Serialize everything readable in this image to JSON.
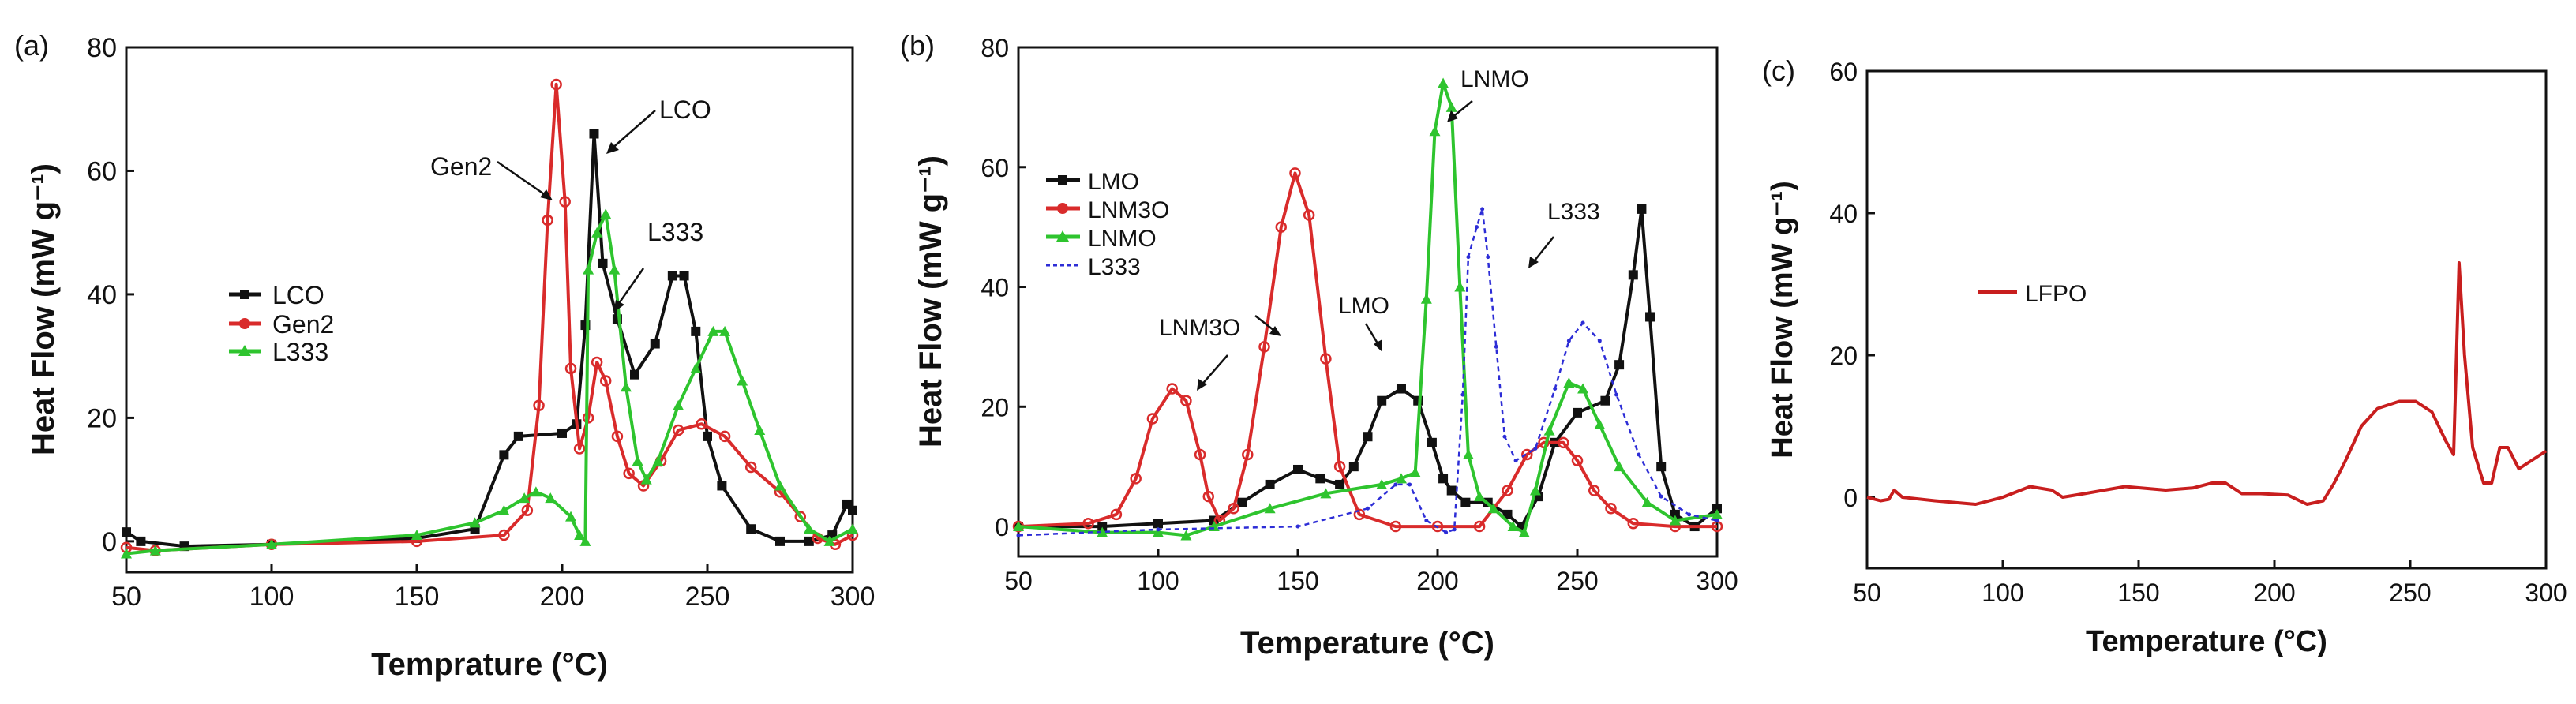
{
  "figure": {
    "panels": [
      "(a)",
      "(b)",
      "(c)"
    ]
  },
  "chart_data": [
    {
      "type": "line",
      "panel_label": "(a)",
      "xlabel": "Temprature",
      "xunit": "(°C)",
      "ylabel": "Heat Flow",
      "yunit": "(mW g⁻¹)",
      "xlim": [
        50,
        300
      ],
      "ylim": [
        -5,
        80
      ],
      "xticks": [
        50,
        100,
        150,
        200,
        250,
        300
      ],
      "yticks": [
        0,
        20,
        40,
        60,
        80
      ],
      "legend": [
        "LCO",
        "Gen2",
        "L333"
      ],
      "annotations": [
        "Gen2",
        "LCO",
        "L333"
      ],
      "series": [
        {
          "name": "LCO",
          "color": "#111111",
          "marker": "square",
          "points": [
            [
              50,
              1.5
            ],
            [
              55,
              0
            ],
            [
              70,
              -0.8
            ],
            [
              100,
              -0.5
            ],
            [
              150,
              0.5
            ],
            [
              170,
              2
            ],
            [
              180,
              14
            ],
            [
              185,
              17
            ],
            [
              200,
              17.5
            ],
            [
              205,
              19
            ],
            [
              208,
              35
            ],
            [
              211,
              66
            ],
            [
              214,
              45
            ],
            [
              219,
              36
            ],
            [
              225,
              27
            ],
            [
              232,
              32
            ],
            [
              238,
              43
            ],
            [
              242,
              43
            ],
            [
              246,
              34
            ],
            [
              250,
              17
            ],
            [
              255,
              9
            ],
            [
              265,
              2
            ],
            [
              275,
              0
            ],
            [
              285,
              0
            ],
            [
              293,
              1
            ],
            [
              298,
              6
            ],
            [
              300,
              5
            ]
          ]
        },
        {
          "name": "Gen2",
          "color": "#d92b2b",
          "marker": "circle",
          "points": [
            [
              50,
              -1
            ],
            [
              60,
              -1.5
            ],
            [
              100,
              -0.5
            ],
            [
              150,
              0
            ],
            [
              180,
              1
            ],
            [
              188,
              5
            ],
            [
              192,
              22
            ],
            [
              195,
              52
            ],
            [
              198,
              74
            ],
            [
              201,
              55
            ],
            [
              203,
              28
            ],
            [
              206,
              15
            ],
            [
              209,
              20
            ],
            [
              212,
              29
            ],
            [
              215,
              26
            ],
            [
              219,
              17
            ],
            [
              223,
              11
            ],
            [
              228,
              9
            ],
            [
              234,
              13
            ],
            [
              240,
              18
            ],
            [
              248,
              19
            ],
            [
              256,
              17
            ],
            [
              265,
              12
            ],
            [
              275,
              8
            ],
            [
              282,
              4
            ],
            [
              288,
              0.5
            ],
            [
              294,
              -0.5
            ],
            [
              300,
              1
            ]
          ]
        },
        {
          "name": "L333",
          "color": "#2ec42e",
          "marker": "triangle",
          "points": [
            [
              50,
              -2
            ],
            [
              60,
              -1.5
            ],
            [
              100,
              -0.5
            ],
            [
              150,
              1
            ],
            [
              170,
              3
            ],
            [
              180,
              5
            ],
            [
              187,
              7
            ],
            [
              191,
              8
            ],
            [
              196,
              7
            ],
            [
              203,
              4
            ],
            [
              206,
              1
            ],
            [
              208,
              0
            ],
            [
              209,
              44
            ],
            [
              212,
              50
            ],
            [
              215,
              53
            ],
            [
              218,
              44
            ],
            [
              222,
              25
            ],
            [
              226,
              13
            ],
            [
              229,
              10
            ],
            [
              233,
              13
            ],
            [
              240,
              22
            ],
            [
              246,
              28
            ],
            [
              252,
              34
            ],
            [
              256,
              34
            ],
            [
              262,
              26
            ],
            [
              268,
              18
            ],
            [
              275,
              9
            ],
            [
              285,
              2
            ],
            [
              292,
              0
            ],
            [
              300,
              2
            ]
          ]
        }
      ]
    },
    {
      "type": "line",
      "panel_label": "(b)",
      "xlabel": "Temperature",
      "xunit": "(°C)",
      "ylabel": "Heat Flow",
      "yunit": "(mW g⁻¹)",
      "xlim": [
        50,
        300
      ],
      "ylim": [
        -5,
        80
      ],
      "xticks": [
        50,
        100,
        150,
        200,
        250,
        300
      ],
      "yticks": [
        0,
        20,
        40,
        60,
        80
      ],
      "legend": [
        "LMO",
        "LNM3O",
        "LNMO",
        "L333"
      ],
      "annotations": [
        "LNMO",
        "L333",
        "LNM3O",
        "LMO"
      ],
      "series": [
        {
          "name": "LMO",
          "color": "#111111",
          "marker": "square",
          "points": [
            [
              50,
              0
            ],
            [
              80,
              0
            ],
            [
              100,
              0.5
            ],
            [
              120,
              1
            ],
            [
              130,
              4
            ],
            [
              140,
              7
            ],
            [
              150,
              9.5
            ],
            [
              158,
              8
            ],
            [
              165,
              7
            ],
            [
              170,
              10
            ],
            [
              175,
              15
            ],
            [
              180,
              21
            ],
            [
              187,
              23
            ],
            [
              193,
              21
            ],
            [
              198,
              14
            ],
            [
              202,
              8
            ],
            [
              205,
              6
            ],
            [
              210,
              4
            ],
            [
              218,
              4
            ],
            [
              225,
              2
            ],
            [
              230,
              0
            ],
            [
              236,
              5
            ],
            [
              242,
              14
            ],
            [
              250,
              19
            ],
            [
              260,
              21
            ],
            [
              265,
              27
            ],
            [
              270,
              42
            ],
            [
              273,
              53
            ],
            [
              276,
              35
            ],
            [
              280,
              10
            ],
            [
              285,
              2
            ],
            [
              292,
              0
            ],
            [
              300,
              3
            ]
          ]
        },
        {
          "name": "LNM3O",
          "color": "#d92b2b",
          "marker": "circle",
          "points": [
            [
              50,
              0
            ],
            [
              75,
              0.5
            ],
            [
              85,
              2
            ],
            [
              92,
              8
            ],
            [
              98,
              18
            ],
            [
              105,
              23
            ],
            [
              110,
              21
            ],
            [
              115,
              12
            ],
            [
              118,
              5
            ],
            [
              122,
              1
            ],
            [
              127,
              3
            ],
            [
              132,
              12
            ],
            [
              138,
              30
            ],
            [
              144,
              50
            ],
            [
              149,
              59
            ],
            [
              154,
              52
            ],
            [
              160,
              28
            ],
            [
              165,
              10
            ],
            [
              172,
              2
            ],
            [
              185,
              0
            ],
            [
              200,
              0
            ],
            [
              215,
              0
            ],
            [
              225,
              6
            ],
            [
              232,
              12
            ],
            [
              238,
              14
            ],
            [
              245,
              14
            ],
            [
              250,
              11
            ],
            [
              256,
              6
            ],
            [
              262,
              3
            ],
            [
              270,
              0.5
            ],
            [
              285,
              0
            ],
            [
              300,
              0
            ]
          ]
        },
        {
          "name": "LNMO",
          "color": "#2ec42e",
          "marker": "triangle",
          "points": [
            [
              50,
              0
            ],
            [
              80,
              -1
            ],
            [
              100,
              -1
            ],
            [
              110,
              -1.5
            ],
            [
              120,
              0
            ],
            [
              140,
              3
            ],
            [
              160,
              5.5
            ],
            [
              180,
              7
            ],
            [
              187,
              8
            ],
            [
              192,
              9
            ],
            [
              196,
              38
            ],
            [
              199,
              66
            ],
            [
              202,
              74
            ],
            [
              205,
              70
            ],
            [
              208,
              40
            ],
            [
              211,
              12
            ],
            [
              215,
              5
            ],
            [
              220,
              3
            ],
            [
              227,
              0
            ],
            [
              231,
              -1
            ],
            [
              235,
              6
            ],
            [
              240,
              16
            ],
            [
              247,
              24
            ],
            [
              252,
              23
            ],
            [
              258,
              17
            ],
            [
              265,
              10
            ],
            [
              275,
              4
            ],
            [
              285,
              1
            ],
            [
              300,
              2
            ]
          ]
        },
        {
          "name": "L333",
          "color": "#2d2dd6",
          "marker": "dot",
          "dash": "6,5",
          "points": [
            [
              50,
              -1.5
            ],
            [
              100,
              -0.5
            ],
            [
              150,
              0
            ],
            [
              175,
              3
            ],
            [
              185,
              7
            ],
            [
              190,
              7
            ],
            [
              196,
              1
            ],
            [
              203,
              -1
            ],
            [
              206,
              -0.5
            ],
            [
              209,
              22
            ],
            [
              211,
              45
            ],
            [
              214,
              50
            ],
            [
              216,
              53
            ],
            [
              218,
              45
            ],
            [
              221,
              30
            ],
            [
              224,
              15
            ],
            [
              228,
              11
            ],
            [
              235,
              13
            ],
            [
              242,
              23
            ],
            [
              247,
              31
            ],
            [
              252,
              34
            ],
            [
              258,
              31
            ],
            [
              264,
              22
            ],
            [
              272,
              12
            ],
            [
              280,
              5
            ],
            [
              290,
              2
            ],
            [
              300,
              1
            ]
          ]
        }
      ]
    },
    {
      "type": "line",
      "panel_label": "(c)",
      "xlabel": "Temperature",
      "xunit": "(°C)",
      "ylabel": "Heat Flow",
      "yunit": "(mW g⁻¹)",
      "xlim": [
        50,
        300
      ],
      "ylim": [
        -10,
        60
      ],
      "xticks": [
        50,
        100,
        150,
        200,
        250,
        300
      ],
      "yticks": [
        0,
        20,
        40,
        60
      ],
      "legend": [
        "LFPO"
      ],
      "series": [
        {
          "name": "LFPO",
          "color": "#c81e1e",
          "marker": "none",
          "points": [
            [
              50,
              0
            ],
            [
              55,
              -0.5
            ],
            [
              58,
              -0.3
            ],
            [
              60,
              1
            ],
            [
              63,
              0
            ],
            [
              75,
              -0.5
            ],
            [
              90,
              -1
            ],
            [
              100,
              0
            ],
            [
              110,
              1.5
            ],
            [
              118,
              1
            ],
            [
              122,
              0
            ],
            [
              130,
              0.5
            ],
            [
              145,
              1.5
            ],
            [
              160,
              1
            ],
            [
              170,
              1.3
            ],
            [
              177,
              2
            ],
            [
              182,
              2
            ],
            [
              188,
              0.5
            ],
            [
              195,
              0.5
            ],
            [
              205,
              0.3
            ],
            [
              212,
              -1
            ],
            [
              218,
              -0.5
            ],
            [
              222,
              2
            ],
            [
              226,
              5
            ],
            [
              232,
              10
            ],
            [
              238,
              12.5
            ],
            [
              246,
              13.5
            ],
            [
              252,
              13.5
            ],
            [
              258,
              12
            ],
            [
              263,
              8
            ],
            [
              266,
              6
            ],
            [
              268,
              33
            ],
            [
              270,
              20
            ],
            [
              273,
              7
            ],
            [
              277,
              2
            ],
            [
              280,
              2
            ],
            [
              283,
              7
            ],
            [
              286,
              7
            ],
            [
              290,
              4
            ],
            [
              294,
              5
            ],
            [
              300,
              6.5
            ]
          ]
        }
      ]
    }
  ]
}
